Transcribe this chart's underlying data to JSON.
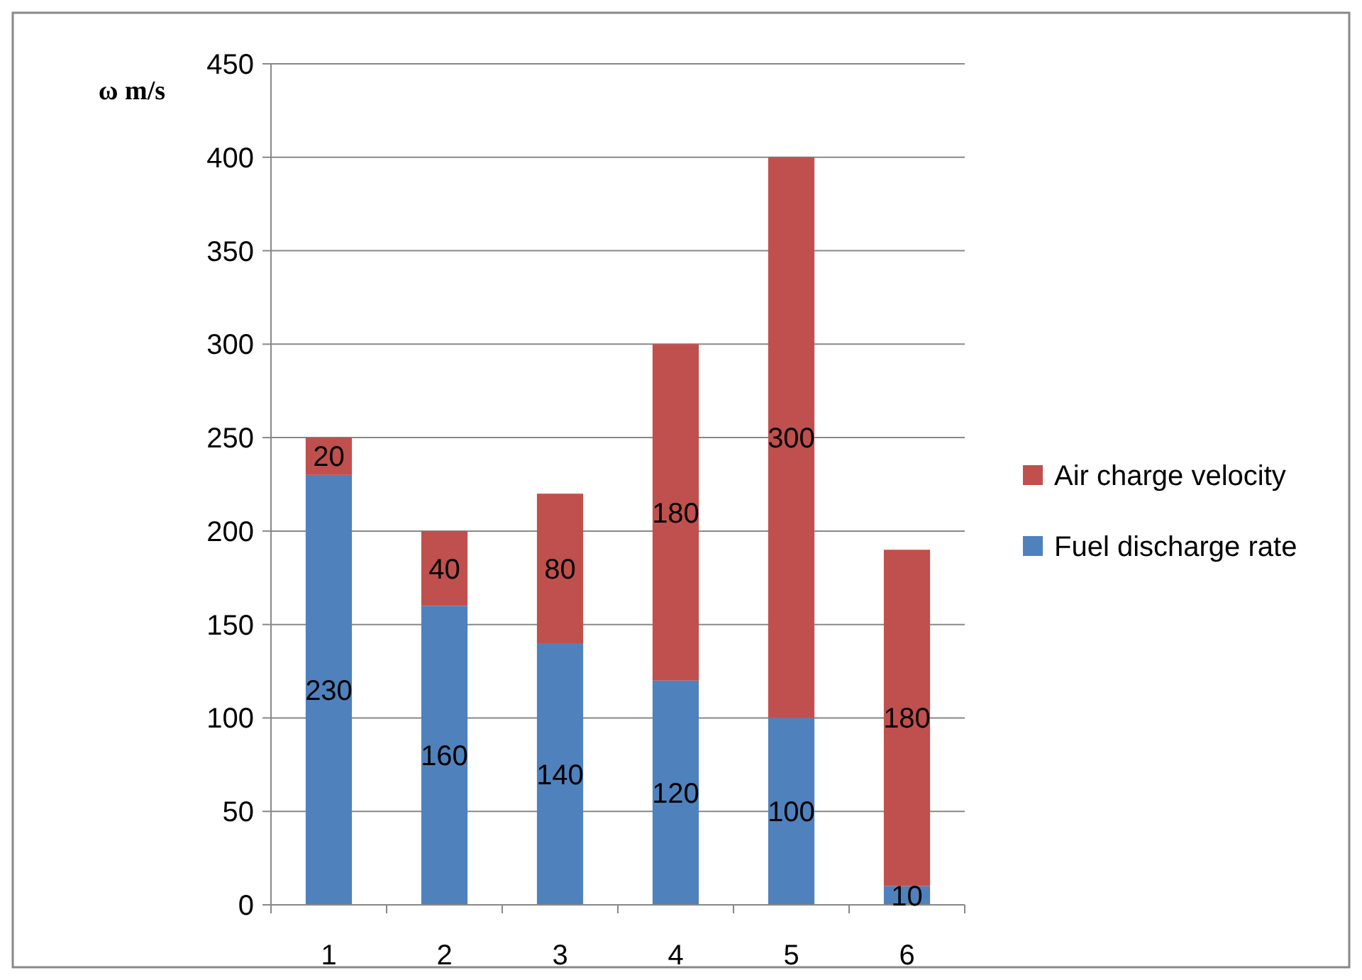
{
  "chart_data": {
    "type": "bar",
    "stacked": true,
    "ylabel": "ω m/s",
    "categories": [
      "1",
      "2",
      "3",
      "4",
      "5",
      "6"
    ],
    "series": [
      {
        "name": "Fuel discharge rate",
        "color": "#4f81bd",
        "values": [
          230,
          160,
          140,
          120,
          100,
          10
        ]
      },
      {
        "name": "Air charge velocity",
        "color": "#c0504d",
        "values": [
          20,
          40,
          80,
          180,
          300,
          180
        ]
      }
    ],
    "ylim": [
      0,
      450
    ],
    "yticks": [
      0,
      50,
      100,
      150,
      200,
      250,
      300,
      350,
      400,
      450
    ],
    "grid": "y",
    "legend": "right",
    "data_labels": true
  }
}
